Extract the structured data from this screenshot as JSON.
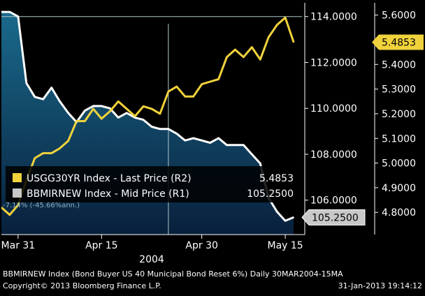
{
  "chart_data": {
    "type": "line",
    "x_tick_labels": [
      "Mar 31",
      "Apr 15",
      "Apr 30",
      "May 15"
    ],
    "year_label": "2004",
    "left_axis": {
      "name": "R1",
      "ylim": [
        104.5,
        114.6
      ],
      "tick_values": [
        106.0,
        108.0,
        110.0,
        112.0,
        114.0
      ],
      "tick_labels": [
        "106.0000",
        "108.0000",
        "110.0000",
        "112.0000",
        "114.0000"
      ]
    },
    "right_axis": {
      "name": "R2",
      "ylim": [
        4.71,
        5.65
      ],
      "tick_values": [
        4.8,
        4.9,
        5.0,
        5.1,
        5.2,
        5.3,
        5.4,
        5.5,
        5.6
      ],
      "tick_labels": [
        "4.8000",
        "4.9000",
        "5.0000",
        "5.1000",
        "5.2000",
        "5.3000",
        "5.4000",
        "5.5000",
        "5.6000"
      ]
    },
    "series": [
      {
        "name": "USGG30YR Index - Last Price (R2)",
        "axis": "right",
        "color": "#f0d23c",
        "last_value_label": "5.4853",
        "x": [
          0,
          1,
          2,
          3,
          4,
          5,
          6,
          7,
          8,
          9,
          10,
          11,
          12,
          13,
          14,
          15,
          16,
          17,
          18,
          19,
          20,
          21,
          22,
          23,
          24,
          25,
          26,
          27,
          28,
          29,
          30,
          31,
          32,
          33,
          34,
          35
        ],
        "values": [
          4.82,
          4.79,
          4.83,
          4.93,
          5.02,
          5.04,
          5.04,
          5.06,
          5.09,
          5.17,
          5.17,
          5.22,
          5.18,
          5.21,
          5.25,
          5.22,
          5.19,
          5.23,
          5.22,
          5.2,
          5.29,
          5.31,
          5.27,
          5.27,
          5.32,
          5.33,
          5.34,
          5.43,
          5.46,
          5.43,
          5.47,
          5.42,
          5.51,
          5.56,
          5.59,
          5.49
        ]
      },
      {
        "name": "BBMIRNEW Index - Mid Price (R1)",
        "axis": "left",
        "color": "#ffffff",
        "last_value_label": "105.2500",
        "x": [
          0,
          1,
          2,
          3,
          4,
          5,
          6,
          7,
          8,
          9,
          10,
          11,
          12,
          13,
          14,
          15,
          16,
          17,
          18,
          19,
          20,
          21,
          22,
          23,
          24,
          25,
          26,
          27,
          28,
          29,
          30,
          31,
          32,
          33,
          34,
          35
        ],
        "values": [
          114.2,
          114.2,
          114.0,
          111.1,
          110.5,
          110.4,
          110.9,
          110.3,
          109.8,
          109.4,
          109.9,
          110.1,
          110.1,
          110.0,
          109.6,
          109.8,
          109.6,
          109.5,
          109.2,
          109.1,
          109.1,
          108.9,
          108.6,
          108.7,
          108.6,
          108.5,
          108.7,
          108.4,
          108.4,
          108.4,
          108.0,
          107.6,
          106.1,
          105.5,
          105.1,
          105.25
        ]
      }
    ],
    "legend": {
      "position": "bottom-left",
      "entries": [
        {
          "label": "USGG30YR Index - Last Price (R2)",
          "value": "5.4853",
          "color": "#f0d23c"
        },
        {
          "label": "BBMIRNEW Index - Mid Price (R1)",
          "value": "105.2500",
          "color": "#c8c8c8"
        }
      ]
    },
    "annotation": "-7.14% (-45.66%ann.)",
    "crosshair_at_x": 20
  },
  "footer": {
    "line1": "BBMIRNEW Index (Bond Buyer US 40 Municipal Bond Reset 6%)  Daily 30MAR2004-15MA",
    "copyright": "Copyright© 2013 Bloomberg Finance L.P.",
    "timestamp": "31-Jan-2013 19:14:12"
  },
  "colors": {
    "background": "#000000",
    "area_top": "#1a6a8c",
    "area_bottom": "#08203c",
    "yellow": "#f0d23c",
    "white": "#ffffff",
    "legend_bg": "#000000",
    "grey_tag": "#c8c8c8"
  }
}
